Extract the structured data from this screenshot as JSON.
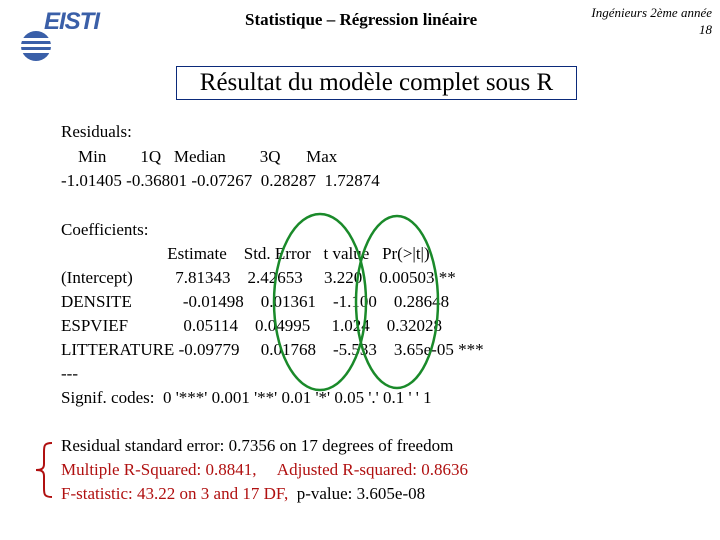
{
  "header": {
    "logo_text": "EISTI",
    "title": "Statistique – Régression linéaire",
    "course": "Ingénieurs 2ème année",
    "page_number": "18"
  },
  "slide": {
    "title": "Résultat du modèle complet sous R"
  },
  "residuals": {
    "label": "Residuals:",
    "header": "    Min        1Q   Median        3Q      Max",
    "values": "-1.01405 -0.36801 -0.07267  0.28287  1.72874"
  },
  "coefficients": {
    "label": "Coefficients:",
    "header": "                         Estimate    Std. Error   t value   Pr(>|t|)",
    "rows": [
      "(Intercept)          7.81343    2.42653     3.220    0.00503 **",
      "DENSITE            -0.01498    0.01361    -1.100    0.28648",
      "ESPVIEF             0.05114    0.04995     1.024    0.32028",
      "LITTERATURE -0.09779     0.01768    -5.533    3.65e-05 ***"
    ],
    "separator": "---",
    "signif": "Signif. codes:  0 '***' 0.001 '**' 0.01 '*' 0.05 '.' 0.1 ' ' 1"
  },
  "summary": {
    "residual_se": "Residual standard error: 0.7356 on 17 degrees of freedom",
    "r_squared": "Multiple R-Squared: 0.8841,     Adjusted R-squared: 0.8636",
    "f_statistic": "F-statistic: 43.22 on 3 and 17 DF,",
    "p_value": "  p-value: 3.605e-08"
  },
  "colors": {
    "title_border": "#0b2a7a",
    "highlight_ellipse": "#1a8a2a",
    "red_text": "#b01010",
    "logo": "#3a5fa8"
  },
  "icons": [
    "eisti-logo-icon",
    "left-brace-icon"
  ]
}
